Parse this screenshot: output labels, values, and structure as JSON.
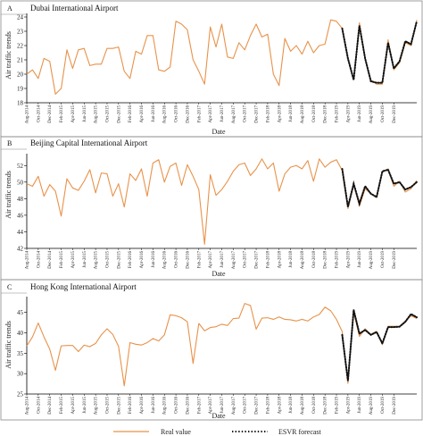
{
  "x_ticks": [
    "Aug-2014",
    "Oct-2014",
    "Dec-2014",
    "Feb-2015",
    "Apr-2015",
    "Jun-2015",
    "Aug-2015",
    "Oct-2015",
    "Dec-2015",
    "Feb-2016",
    "Apr-2016",
    "Jun-2016",
    "Aug-2016",
    "Oct-2016",
    "Dec-2016",
    "Feb-2017",
    "Apr-2017",
    "Jun-2017",
    "Aug-2017",
    "Oct-2017",
    "Dec-2017",
    "Feb-2018",
    "Apr-2018",
    "Jun-2018",
    "Aug-2018",
    "Oct-2018",
    "Dec-2018",
    "Feb-2019",
    "Apr-2019",
    "Jun-2019",
    "Aug-2019",
    "Oct-2019",
    "Dec-2019"
  ],
  "legend": {
    "real": "Real value",
    "forecast": "ESVR forecast"
  },
  "colors": {
    "real": "#e8924a",
    "forecast": "#111111",
    "axis": "#000000",
    "panel_border": "#888888"
  },
  "chart_data": [
    {
      "type": "line",
      "letter": "A",
      "title": "Dubai International Airport",
      "xlabel": "Date",
      "ylabel": "Air traffic trends",
      "ylim": [
        18,
        24
      ],
      "yticks": [
        18,
        19,
        20,
        21,
        22,
        23,
        24
      ],
      "series": [
        {
          "name": "Real value",
          "start_index": 0,
          "values": [
            20.0,
            20.3,
            19.7,
            21.1,
            20.9,
            18.6,
            19.0,
            21.7,
            20.4,
            21.7,
            21.8,
            20.6,
            20.7,
            20.7,
            21.8,
            21.8,
            21.9,
            20.2,
            19.7,
            21.6,
            21.4,
            22.7,
            22.7,
            20.3,
            20.2,
            20.5,
            23.7,
            23.5,
            23.1,
            21.0,
            20.2,
            19.3,
            23.3,
            21.9,
            23.5,
            21.2,
            21.1,
            22.2,
            21.7,
            22.7,
            23.5,
            22.6,
            22.8,
            20.0,
            19.2,
            22.5,
            21.6,
            22.0,
            21.4,
            22.3,
            21.5,
            22.0,
            22.1,
            23.8,
            23.7,
            23.2,
            21.0,
            19.7,
            23.6,
            21.0,
            19.6,
            19.3,
            19.3,
            22.4,
            20.3,
            20.8,
            22.2,
            22.0,
            23.8
          ]
        },
        {
          "name": "ESVR forecast",
          "start_index": 55,
          "values": [
            23.2,
            21.1,
            19.6,
            23.4,
            21.1,
            19.5,
            19.4,
            19.4,
            22.2,
            20.4,
            20.9,
            22.3,
            22.1,
            23.7
          ]
        }
      ]
    },
    {
      "type": "line",
      "letter": "B",
      "title": "Beijing Capital International Airport",
      "xlabel": "Date",
      "ylabel": "Air traffic trends",
      "ylim": [
        42,
        53
      ],
      "yticks": [
        42,
        44,
        46,
        48,
        50,
        52
      ],
      "series": [
        {
          "name": "Real value",
          "start_index": 0,
          "values": [
            49.8,
            49.5,
            50.7,
            48.3,
            49.7,
            48.9,
            45.9,
            50.4,
            49.3,
            49.0,
            50.1,
            51.5,
            48.7,
            51.1,
            51.0,
            48.3,
            49.8,
            47.0,
            51.0,
            50.2,
            51.6,
            48.3,
            52.3,
            52.7,
            50.0,
            51.9,
            52.3,
            49.6,
            52.1,
            50.7,
            49.1,
            42.5,
            50.9,
            48.4,
            49.1,
            50.1,
            51.3,
            52.1,
            52.3,
            50.8,
            51.6,
            52.8,
            51.6,
            52.3,
            48.9,
            51.0,
            51.8,
            52.0,
            51.6,
            52.6,
            50.1,
            52.8,
            51.8,
            52.4,
            52.7,
            51.4,
            46.8,
            49.7,
            47.1,
            49.2,
            48.6,
            48.1,
            51.2,
            51.6,
            49.5,
            50.1,
            48.8,
            49.2,
            50.2
          ]
        },
        {
          "name": "ESVR forecast",
          "start_index": 55,
          "values": [
            51.6,
            47.0,
            49.8,
            47.4,
            49.5,
            48.6,
            48.2,
            51.3,
            51.5,
            49.8,
            50.0,
            49.1,
            49.4,
            50.0
          ]
        }
      ]
    },
    {
      "type": "line",
      "letter": "C",
      "title": "Hong Kong International Airport",
      "xlabel": "Date",
      "ylabel": "Air traffic trends",
      "ylim": [
        25,
        48
      ],
      "yticks": [
        25,
        30,
        35,
        40,
        45
      ],
      "series": [
        {
          "name": "Real value",
          "start_index": 0,
          "values": [
            36.8,
            39.0,
            42.4,
            39.0,
            36.0,
            30.8,
            36.8,
            36.9,
            36.9,
            35.4,
            37.0,
            36.6,
            37.4,
            39.5,
            41.0,
            39.6,
            36.7,
            27.0,
            37.6,
            37.2,
            37.0,
            37.6,
            38.6,
            38.0,
            39.5,
            44.4,
            44.2,
            43.7,
            42.7,
            32.5,
            42.3,
            40.5,
            41.3,
            41.5,
            42.1,
            41.8,
            43.5,
            43.6,
            47.2,
            46.7,
            40.9,
            43.6,
            43.7,
            43.3,
            43.9,
            43.3,
            43.2,
            42.9,
            43.3,
            42.9,
            43.9,
            44.5,
            46.3,
            45.4,
            43.3,
            40.3,
            27.6,
            45.1,
            39.1,
            41.0,
            39.6,
            40.4,
            37.1,
            41.6,
            41.6,
            41.6,
            42.9,
            44.2,
            43.5
          ]
        },
        {
          "name": "ESVR forecast",
          "start_index": 55,
          "values": [
            39.5,
            28.2,
            45.6,
            39.8,
            40.7,
            39.5,
            40.2,
            37.4,
            41.4,
            41.4,
            41.5,
            42.7,
            44.6,
            43.8
          ]
        }
      ]
    }
  ]
}
